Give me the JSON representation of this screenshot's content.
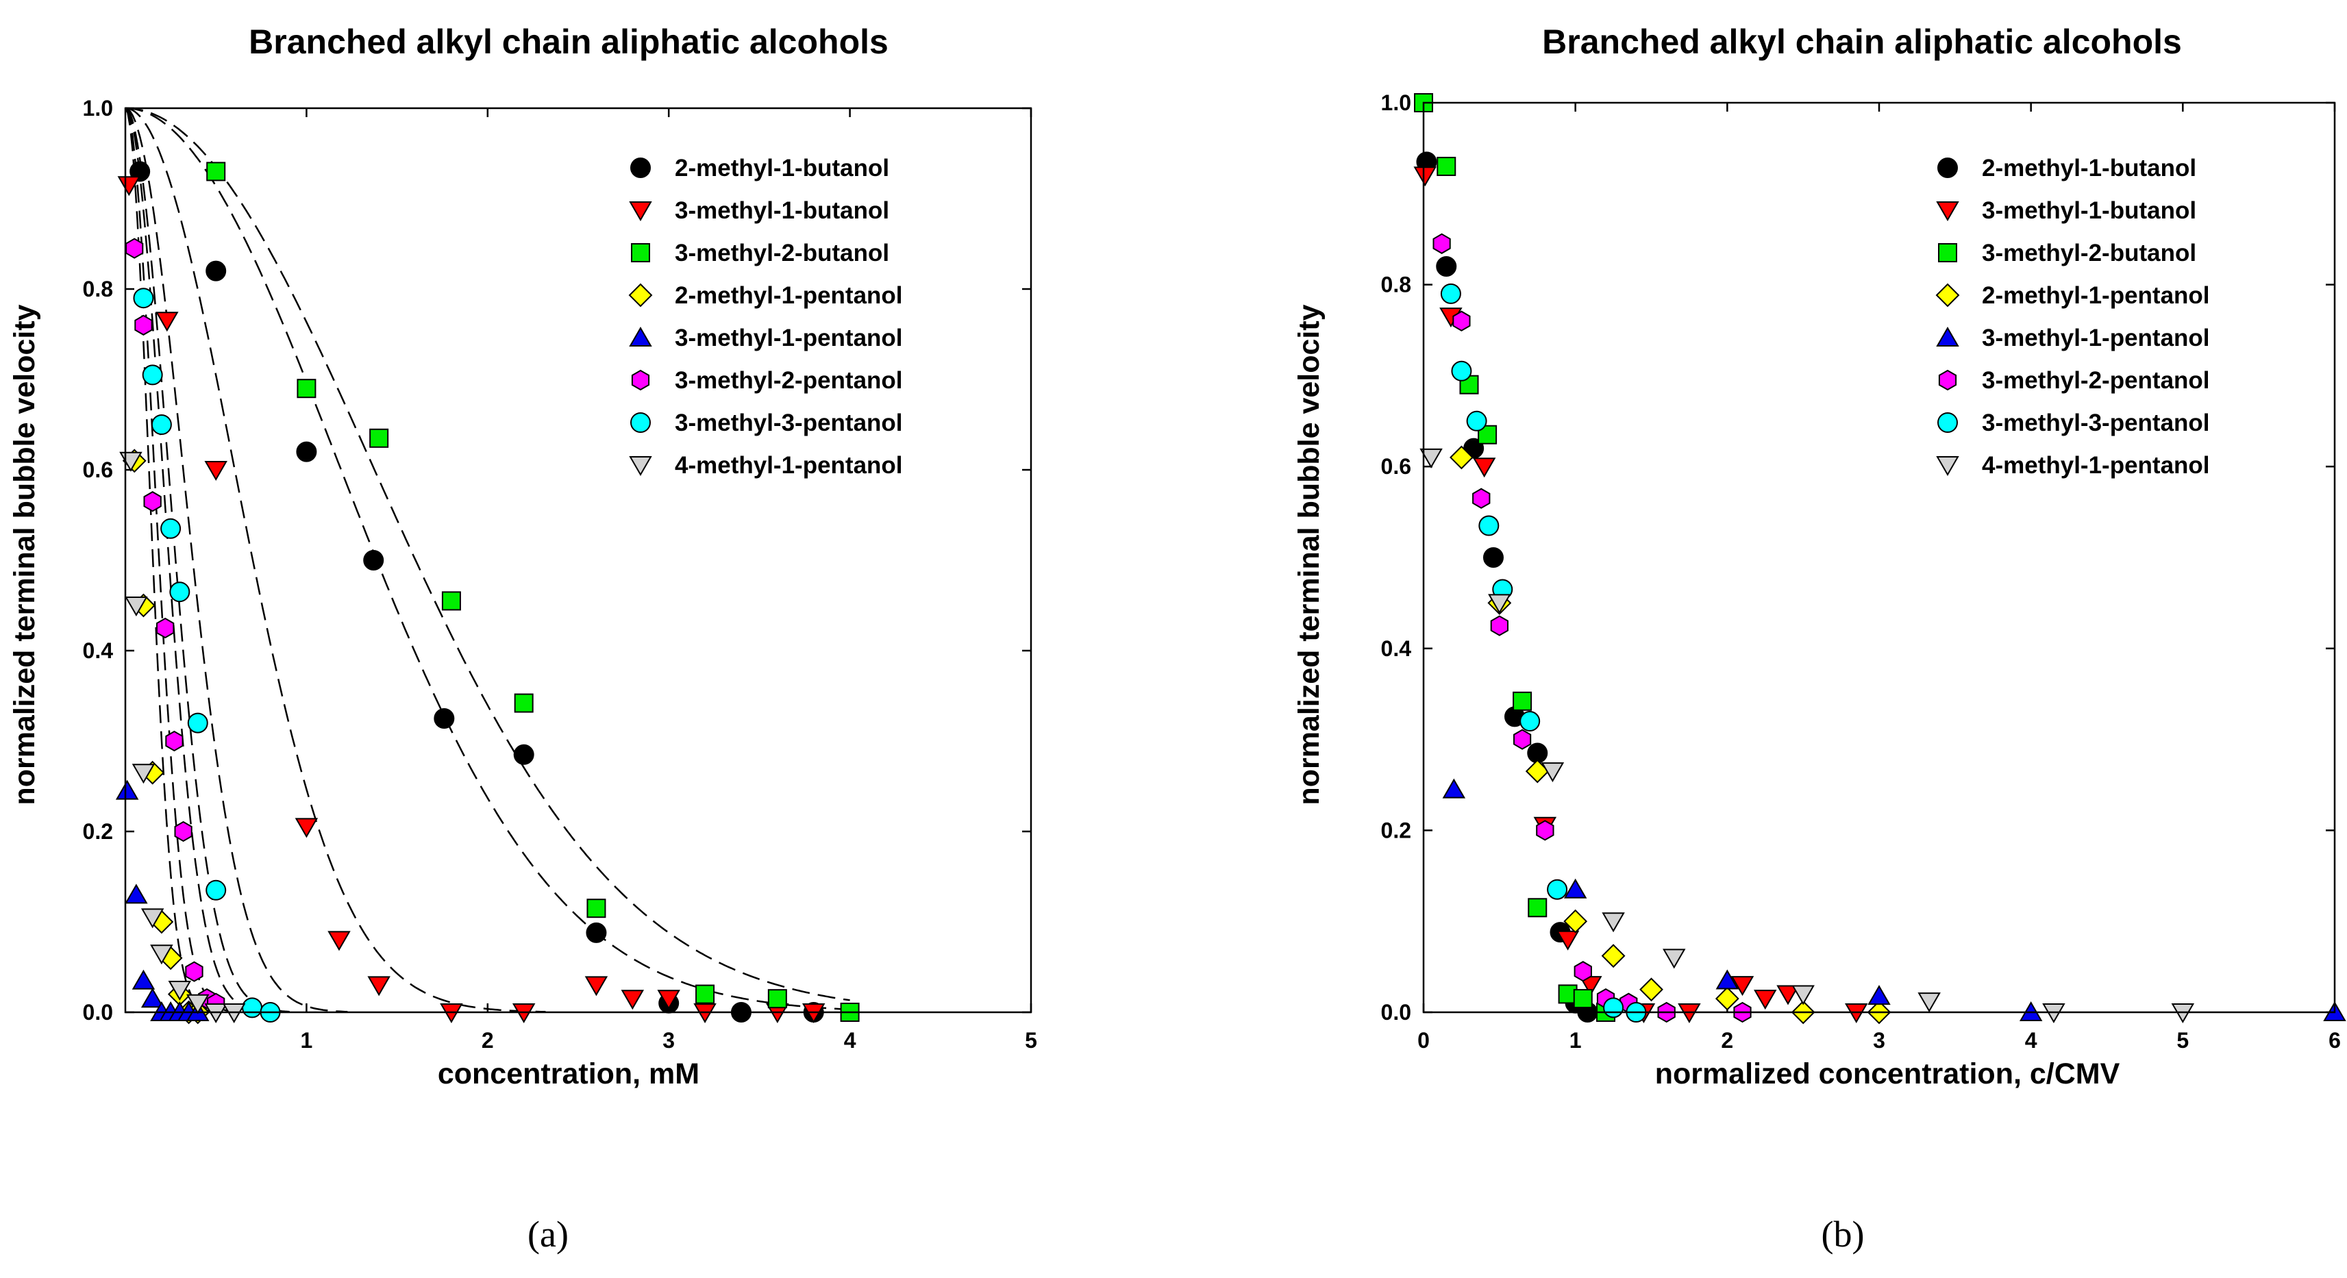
{
  "chart_data": [
    {
      "panel": "a",
      "type": "scatter",
      "title": "Branched alkyl chain aliphatic alcohols",
      "xlabel": "concentration, mM",
      "ylabel": "normalized terminal bubble velocity",
      "caption": "(a)",
      "xlim": [
        0,
        5
      ],
      "ylim": [
        0,
        1
      ],
      "xticks": [
        "1",
        "2",
        "3",
        "4",
        "5"
      ],
      "yticks": [
        "0.0",
        "0.2",
        "0.4",
        "0.6",
        "0.8",
        "1.0"
      ],
      "legend_position": "top-right",
      "fit_curves": "dashed",
      "series": [
        {
          "name": "2-methyl-1-butanol",
          "marker": "circle",
          "color": "#000000",
          "x": [
            0.08,
            0.5,
            1.0,
            1.37,
            1.76,
            2.2,
            2.6,
            3.0,
            3.4,
            3.8
          ],
          "y": [
            0.93,
            0.82,
            0.62,
            0.5,
            0.325,
            0.285,
            0.088,
            0.01,
            0.0,
            0.0
          ],
          "fit_k": 0.36
        },
        {
          "name": "3-methyl-1-butanol",
          "marker": "triangle-down",
          "color": "#ff0000",
          "x": [
            0.02,
            0.23,
            0.5,
            1.0,
            1.18,
            1.4,
            1.8,
            2.2,
            2.6,
            2.8,
            3.0,
            3.2,
            3.6,
            3.8
          ],
          "y": [
            0.915,
            0.765,
            0.6,
            0.205,
            0.08,
            0.03,
            0.0,
            0.0,
            0.03,
            0.015,
            0.015,
            0.0,
            0.0,
            0.0
          ],
          "fit_k": 1.4
        },
        {
          "name": "3-methyl-2-butanol",
          "marker": "square",
          "color": "#00ee00",
          "x": [
            0.5,
            1.0,
            1.4,
            1.8,
            2.2,
            2.6,
            3.2,
            3.6,
            4.0
          ],
          "y": [
            0.93,
            0.69,
            0.635,
            0.455,
            0.342,
            0.115,
            0.02,
            0.015,
            0.0
          ],
          "fit_k": 0.27
        },
        {
          "name": "2-methyl-1-pentanol",
          "marker": "diamond",
          "color": "#ffff00",
          "x": [
            0.05,
            0.1,
            0.15,
            0.2,
            0.25,
            0.3,
            0.35,
            0.4
          ],
          "y": [
            0.61,
            0.45,
            0.265,
            0.1,
            0.06,
            0.02,
            0.0,
            0.0
          ],
          "fit_k": 12.0
        },
        {
          "name": "3-methyl-1-pentanol",
          "marker": "triangle-up",
          "color": "#0000ee",
          "x": [
            0.01,
            0.06,
            0.1,
            0.15,
            0.2,
            0.25,
            0.3,
            0.35,
            0.4
          ],
          "y": [
            0.245,
            0.13,
            0.035,
            0.015,
            0.0,
            0.0,
            0.0,
            0.0,
            0.0
          ],
          "fit_k": 30.0
        },
        {
          "name": "3-methyl-2-pentanol",
          "marker": "hexagon",
          "color": "#ff00ff",
          "x": [
            0.05,
            0.1,
            0.15,
            0.22,
            0.27,
            0.32,
            0.38,
            0.45,
            0.5
          ],
          "y": [
            0.845,
            0.76,
            0.565,
            0.425,
            0.3,
            0.2,
            0.045,
            0.015,
            0.01
          ],
          "fit_k": 9.0
        },
        {
          "name": "3-methyl-3-pentanol",
          "marker": "circle",
          "color": "#00ffff",
          "x": [
            0.1,
            0.15,
            0.2,
            0.25,
            0.3,
            0.4,
            0.5,
            0.7,
            0.8
          ],
          "y": [
            0.79,
            0.705,
            0.65,
            0.535,
            0.465,
            0.32,
            0.135,
            0.005,
            0.0
          ],
          "fit_k": 5.0
        },
        {
          "name": "4-methyl-1-pentanol",
          "marker": "triangle-down",
          "color": "#d3d3d3",
          "x": [
            0.03,
            0.06,
            0.1,
            0.15,
            0.2,
            0.3,
            0.4,
            0.5,
            0.6
          ],
          "y": [
            0.61,
            0.45,
            0.265,
            0.105,
            0.065,
            0.025,
            0.01,
            0.0,
            0.0
          ],
          "fit_k": 20.0
        }
      ]
    },
    {
      "panel": "b",
      "type": "scatter",
      "title": "Branched alkyl chain aliphatic alcohols",
      "xlabel": "normalized concentration, c/CMV",
      "ylabel": "normalized terminal bubble velocity",
      "caption": "(b)",
      "xlim": [
        0,
        6
      ],
      "ylim": [
        0,
        1
      ],
      "xticks": [
        "0",
        "1",
        "2",
        "3",
        "4",
        "5",
        "6"
      ],
      "yticks": [
        "0.0",
        "0.2",
        "0.4",
        "0.6",
        "0.8",
        "1.0"
      ],
      "legend_position": "top-right",
      "series": [
        {
          "name": "2-methyl-1-butanol",
          "marker": "circle",
          "color": "#000000",
          "x": [
            0.02,
            0.15,
            0.33,
            0.46,
            0.6,
            0.75,
            0.9,
            1.0,
            1.08
          ],
          "y": [
            0.935,
            0.82,
            0.62,
            0.5,
            0.325,
            0.285,
            0.088,
            0.01,
            0.0
          ]
        },
        {
          "name": "3-methyl-1-butanol",
          "marker": "triangle-down",
          "color": "#ff0000",
          "x": [
            0.01,
            0.18,
            0.4,
            0.8,
            0.95,
            1.1,
            1.45,
            1.75,
            2.1,
            2.25,
            2.4,
            2.85
          ],
          "y": [
            0.92,
            0.765,
            0.6,
            0.205,
            0.08,
            0.03,
            0.0,
            0.0,
            0.03,
            0.015,
            0.02,
            0.0
          ]
        },
        {
          "name": "3-methyl-2-butanol",
          "marker": "square",
          "color": "#00ee00",
          "x": [
            0.0,
            0.15,
            0.3,
            0.42,
            0.65,
            0.75,
            0.95,
            1.05,
            1.2
          ],
          "y": [
            1.0,
            0.93,
            0.69,
            0.635,
            0.342,
            0.115,
            0.02,
            0.015,
            0.0
          ]
        },
        {
          "name": "2-methyl-1-pentanol",
          "marker": "diamond",
          "color": "#ffff00",
          "x": [
            0.25,
            0.5,
            0.75,
            1.0,
            1.25,
            1.5,
            2.0,
            2.5,
            3.0
          ],
          "y": [
            0.61,
            0.45,
            0.265,
            0.1,
            0.062,
            0.025,
            0.015,
            0.0,
            0.0
          ]
        },
        {
          "name": "3-methyl-1-pentanol",
          "marker": "triangle-up",
          "color": "#0000ee",
          "x": [
            0.2,
            1.0,
            2.0,
            3.0,
            4.0,
            6.0
          ],
          "y": [
            0.245,
            0.135,
            0.035,
            0.018,
            0.0,
            0.0
          ]
        },
        {
          "name": "3-methyl-2-pentanol",
          "marker": "hexagon",
          "color": "#ff00ff",
          "x": [
            0.12,
            0.25,
            0.38,
            0.5,
            0.65,
            0.8,
            1.05,
            1.2,
            1.35,
            1.6,
            2.1
          ],
          "y": [
            0.845,
            0.76,
            0.565,
            0.425,
            0.3,
            0.2,
            0.045,
            0.015,
            0.01,
            0.0,
            0.0
          ]
        },
        {
          "name": "3-methyl-3-pentanol",
          "marker": "circle",
          "color": "#00ffff",
          "x": [
            0.18,
            0.25,
            0.35,
            0.43,
            0.52,
            0.7,
            0.88,
            1.25,
            1.4
          ],
          "y": [
            0.79,
            0.705,
            0.65,
            0.535,
            0.465,
            0.32,
            0.135,
            0.005,
            0.0
          ]
        },
        {
          "name": "4-methyl-1-pentanol",
          "marker": "triangle-down",
          "color": "#d3d3d3",
          "x": [
            0.05,
            0.5,
            0.85,
            1.25,
            1.65,
            2.5,
            3.33,
            4.15,
            5.0
          ],
          "y": [
            0.61,
            0.45,
            0.265,
            0.1,
            0.06,
            0.02,
            0.012,
            0.0,
            0.0
          ]
        }
      ]
    }
  ]
}
